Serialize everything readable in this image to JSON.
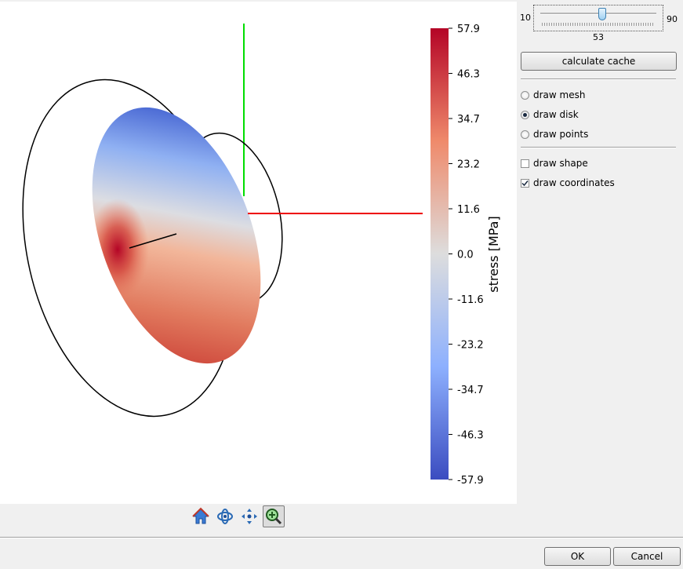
{
  "slider": {
    "min_label": "10",
    "max_label": "90",
    "value_label": "53",
    "value": 53
  },
  "buttons": {
    "calculate_cache": "calculate cache",
    "ok": "OK",
    "cancel": "Cancel"
  },
  "options": {
    "radio": [
      {
        "label": "draw mesh",
        "checked": false
      },
      {
        "label": "draw disk",
        "checked": true
      },
      {
        "label": "draw points",
        "checked": false
      }
    ],
    "check": [
      {
        "label": "draw shape",
        "checked": false
      },
      {
        "label": "draw coordinates",
        "checked": true
      }
    ]
  },
  "colorbar": {
    "title": "stress [MPa]",
    "ticks": [
      "57.9",
      "46.3",
      "34.7",
      "23.2",
      "11.6",
      "0.0",
      "-11.6",
      "-23.2",
      "-34.7",
      "-46.3",
      "-57.9"
    ]
  },
  "toolbar": {
    "icons": [
      "home-icon",
      "rotate-icon",
      "pan-icon",
      "zoom-icon"
    ],
    "active": "zoom-icon"
  },
  "colors": {
    "x_axis": "#ff0000",
    "y_axis": "#00dd00",
    "colormap_high": "#b40426",
    "colormap_mid": "#dddddd",
    "colormap_low": "#3b4cc0"
  }
}
